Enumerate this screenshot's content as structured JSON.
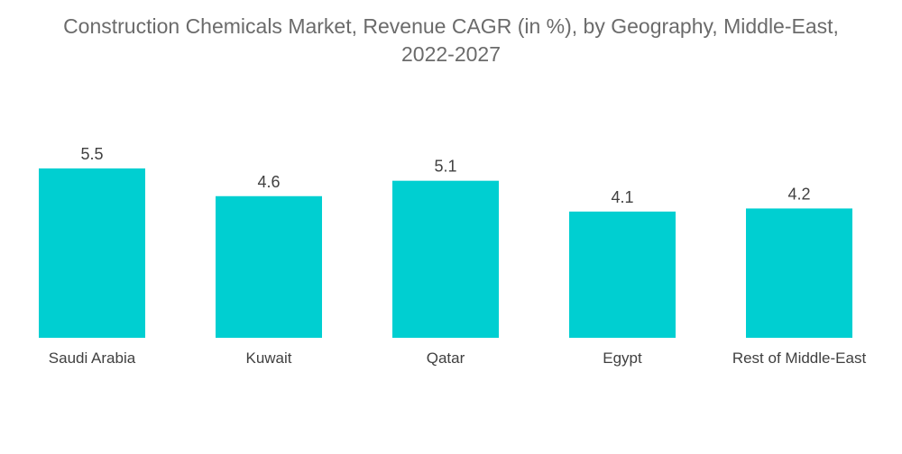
{
  "chart_data": {
    "type": "bar",
    "title_line1": "Construction Chemicals Market, Revenue CAGR (in %), by Geography, Middle-East,",
    "title_line2": "2022-2027",
    "categories": [
      "Saudi Arabia",
      "Kuwait",
      "Qatar",
      "Egypt",
      "Rest of Middle-East"
    ],
    "values": [
      5.5,
      4.6,
      5.1,
      4.1,
      4.2
    ],
    "value_labels": [
      "5.5",
      "4.6",
      "5.1",
      "4.1",
      "4.2"
    ],
    "bar_color": "#00cfd1",
    "ylim": [
      0,
      5.5
    ],
    "grid": false,
    "legend": "none"
  }
}
